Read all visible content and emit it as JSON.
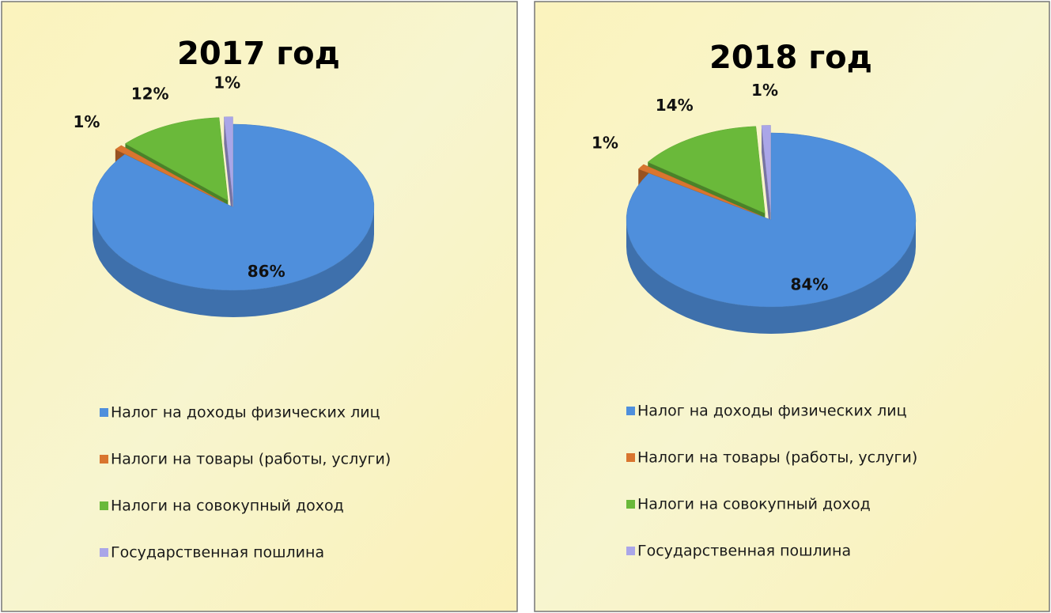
{
  "chart_data": [
    {
      "type": "pie",
      "title": "2017 год",
      "categories": [
        "Налог на доходы физических лиц",
        "Налоги на товары (работы, услуги)",
        "Налоги на совокупный доход",
        "Государственная пошлина"
      ],
      "values": [
        86,
        1,
        12,
        1
      ],
      "value_labels": [
        "86%",
        "1%",
        "12%",
        "1%"
      ],
      "colors": [
        "#4f8fdc",
        "#d9752f",
        "#6ab93a",
        "#aaa6e8"
      ]
    },
    {
      "type": "pie",
      "title": "2018 год",
      "categories": [
        "Налог на доходы физических лиц",
        "Налоги на товары (работы, услуги)",
        "Налоги на совокупный доход",
        "Государственная пошлина"
      ],
      "values": [
        84,
        1,
        14,
        1
      ],
      "value_labels": [
        "84%",
        "1%",
        "14%",
        "1%"
      ],
      "colors": [
        "#4f8fdc",
        "#d9752f",
        "#6ab93a",
        "#aaa6e8"
      ]
    }
  ]
}
